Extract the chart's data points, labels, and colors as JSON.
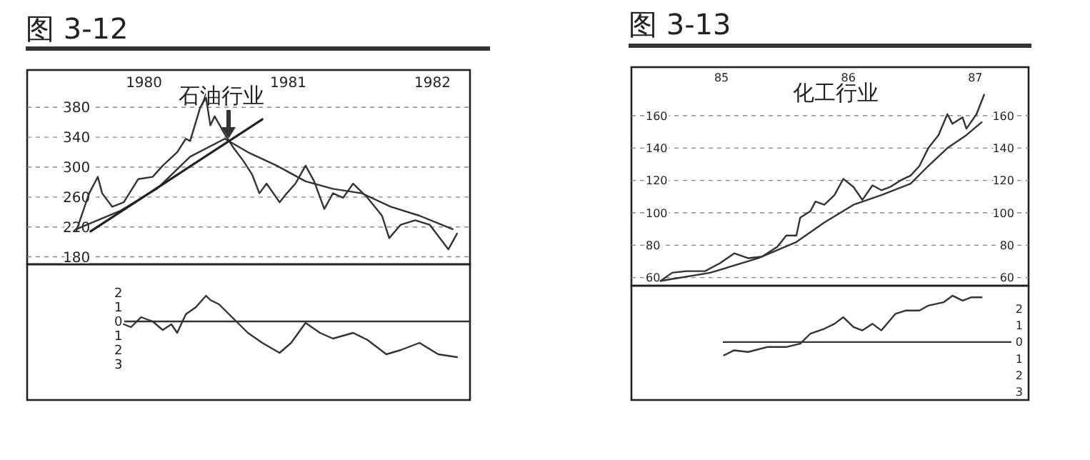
{
  "chart_data": [
    {
      "type": "line",
      "title": "图 3-12",
      "subtitle": "石油行业",
      "xlim": [
        1979.69,
        1982.76
      ],
      "ylim": [
        170,
        430
      ],
      "xticks": [
        {
          "value": 1980.5,
          "label": "1980"
        },
        {
          "value": 1981.5,
          "label": "1981"
        },
        {
          "value": 1982.5,
          "label": "1982"
        }
      ],
      "yticks": [
        180,
        220,
        260,
        300,
        340,
        380
      ],
      "grid": "y",
      "series": [
        {
          "color": "#333333",
          "x": [
            1980.03,
            1980.12,
            1980.18,
            1980.21,
            1980.28,
            1980.36,
            1980.46,
            1980.56,
            1980.63,
            1980.73,
            1980.79,
            1980.82,
            1980.89,
            1980.93,
            1980.96,
            1980.99,
            1981.06,
            1981.12,
            1981.19,
            1981.25,
            1981.3,
            1981.35,
            1981.44,
            1981.49,
            1981.55,
            1981.62,
            1981.68,
            1981.75,
            1981.81,
            1981.88,
            1981.95,
            1982.05,
            1982.15,
            1982.2,
            1982.28,
            1982.38,
            1982.48,
            1982.61,
            1982.67
          ],
          "values": [
            214,
            265,
            287,
            265,
            247,
            253,
            284,
            287,
            302,
            320,
            338,
            335,
            380,
            393,
            356,
            368,
            344,
            326,
            308,
            290,
            265,
            278,
            253,
            265,
            278,
            302,
            281,
            244,
            265,
            259,
            278,
            259,
            235,
            205,
            223,
            229,
            223,
            190,
            211
          ]
        },
        {
          "color": "#333333",
          "x": [
            1980.03,
            1980.33,
            1980.59,
            1980.82,
            1981.06,
            1981.22,
            1981.42,
            1981.62,
            1981.81,
            1982.01,
            1982.21,
            1982.41,
            1982.64
          ],
          "values": [
            217,
            241,
            271,
            314,
            338,
            320,
            302,
            281,
            271,
            265,
            247,
            235,
            217
          ]
        },
        {
          "color": "#222222",
          "x": [
            1980.13,
            1981.32
          ],
          "values": [
            214,
            364
          ]
        }
      ]
    },
    {
      "type": "line",
      "xlim": [
        1979.69,
        1982.76
      ],
      "ylim": [
        -5.5,
        4
      ],
      "tick_labels": "y",
      "yticks": [
        {
          "value": 2,
          "label": "2"
        },
        {
          "value": 1,
          "label": "1"
        },
        {
          "value": 0,
          "label": "0"
        },
        {
          "value": -1,
          "label": "1"
        },
        {
          "value": -2,
          "label": "2"
        },
        {
          "value": -3,
          "label": "3"
        }
      ],
      "ref_lines": [
        {
          "axis": "y",
          "value": 0
        }
      ],
      "series": [
        {
          "color": "#333333",
          "x": [
            1980.36,
            1980.41,
            1980.48,
            1980.56,
            1980.63,
            1980.69,
            1980.73,
            1980.79,
            1980.86,
            1980.93,
            1980.96,
            1981.02,
            1981.12,
            1981.22,
            1981.32,
            1981.44,
            1981.52,
            1981.62,
            1981.72,
            1981.81,
            1981.95,
            1982.05,
            1982.18,
            1982.28,
            1982.41,
            1982.54,
            1982.67
          ],
          "values": [
            -0.2,
            -0.4,
            0.3,
            0,
            -0.6,
            -0.2,
            -0.8,
            0.5,
            1.0,
            1.8,
            1.5,
            1.2,
            0.2,
            -0.8,
            -1.5,
            -2.2,
            -1.5,
            -0.1,
            -0.8,
            -1.2,
            -0.8,
            -1.3,
            -2.3,
            -2.0,
            -1.5,
            -2.3,
            -2.5
          ]
        }
      ]
    },
    {
      "type": "line",
      "title": "图 3-13",
      "subtitle": "化工行业",
      "xlim": [
        84.29,
        87.42
      ],
      "ylim": [
        55,
        190
      ],
      "y2lim": [
        55,
        190
      ],
      "xticks": [
        85,
        86,
        87
      ],
      "yticks": [
        60,
        80,
        100,
        120,
        140,
        160
      ],
      "y2ticks": [
        60,
        80,
        100,
        120,
        140,
        160
      ],
      "grid": "y",
      "series": [
        {
          "color": "#333333",
          "x": [
            84.52,
            84.61,
            84.72,
            84.87,
            84.99,
            85.1,
            85.21,
            85.32,
            85.44,
            85.51,
            85.59,
            85.62,
            85.7,
            85.74,
            85.81,
            85.89,
            85.96,
            86.04,
            86.11,
            86.19,
            86.26,
            86.33,
            86.41,
            86.49,
            86.56,
            86.63,
            86.71,
            86.78,
            86.82,
            86.9,
            86.93,
            87.01,
            87.07
          ],
          "values": [
            58,
            63,
            64,
            64,
            69,
            75,
            72,
            73,
            79,
            86,
            86,
            97,
            101,
            107,
            105,
            111,
            121,
            116,
            108,
            117,
            114,
            116,
            120,
            123,
            129,
            140,
            148,
            161,
            155,
            159,
            152,
            161,
            173
          ]
        },
        {
          "color": "#333333",
          "x": [
            84.52,
            84.91,
            85.29,
            85.59,
            85.81,
            86.04,
            86.26,
            86.49,
            86.63,
            86.78,
            86.93,
            87.05
          ],
          "values": [
            58,
            63,
            72,
            82,
            94,
            105,
            111,
            118,
            129,
            140,
            148,
            156
          ]
        }
      ]
    },
    {
      "type": "line",
      "xlim": [
        84.29,
        87.42
      ],
      "y2lim": [
        -3.5,
        3.4
      ],
      "tick_labels": "y",
      "y2ticks": [
        {
          "value": 2,
          "label": "2"
        },
        {
          "value": 1,
          "label": "1"
        },
        {
          "value": 0,
          "label": "0"
        },
        {
          "value": -1,
          "label": "1"
        },
        {
          "value": -2,
          "label": "2"
        },
        {
          "value": -3,
          "label": "3"
        }
      ],
      "ref_lines": [
        {
          "axis": "y2",
          "value": 0
        }
      ],
      "series": [
        {
          "color": "#333333",
          "axis": "y2",
          "x": [
            85.02,
            85.1,
            85.21,
            85.36,
            85.51,
            85.62,
            85.7,
            85.81,
            85.89,
            85.96,
            86.04,
            86.11,
            86.19,
            86.26,
            86.37,
            86.45,
            86.56,
            86.63,
            86.75,
            86.82,
            86.9,
            86.97,
            87.05
          ],
          "values": [
            -0.8,
            -0.5,
            -0.6,
            -0.3,
            -0.3,
            -0.1,
            0.5,
            0.8,
            1.1,
            1.5,
            0.9,
            0.7,
            1.1,
            0.7,
            1.7,
            1.9,
            1.9,
            2.2,
            2.4,
            2.8,
            2.5,
            2.7,
            2.7
          ]
        }
      ]
    }
  ]
}
